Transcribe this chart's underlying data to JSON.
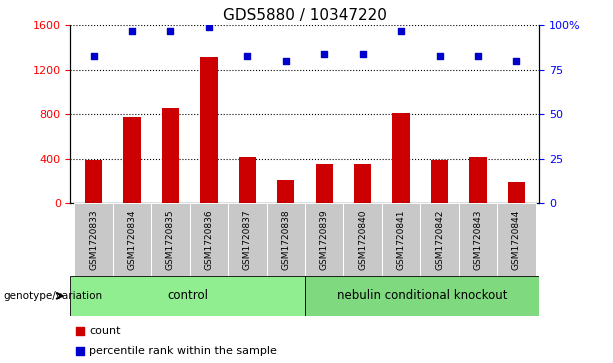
{
  "title": "GDS5880 / 10347220",
  "samples": [
    "GSM1720833",
    "GSM1720834",
    "GSM1720835",
    "GSM1720836",
    "GSM1720837",
    "GSM1720838",
    "GSM1720839",
    "GSM1720840",
    "GSM1720841",
    "GSM1720842",
    "GSM1720843",
    "GSM1720844"
  ],
  "counts": [
    390,
    780,
    860,
    1320,
    415,
    210,
    355,
    350,
    810,
    390,
    415,
    195
  ],
  "percentiles": [
    83,
    97,
    97,
    99,
    83,
    80,
    84,
    84,
    97,
    83,
    83,
    80
  ],
  "ylim_left": [
    0,
    1600
  ],
  "ylim_right": [
    0,
    100
  ],
  "yticks_left": [
    0,
    400,
    800,
    1200,
    1600
  ],
  "yticks_right": [
    0,
    25,
    50,
    75,
    100
  ],
  "yticklabels_right": [
    "0",
    "25",
    "50",
    "75",
    "100%"
  ],
  "groups": [
    {
      "label": "control",
      "start": 0,
      "end": 6,
      "color": "#90EE90"
    },
    {
      "label": "nebulin conditional knockout",
      "start": 6,
      "end": 12,
      "color": "#7FD97F"
    }
  ],
  "group_label": "genotype/variation",
  "bar_color": "#CC0000",
  "dot_color": "#0000CC",
  "bar_width": 0.45,
  "grid_color": "black",
  "background_color": "#ffffff",
  "tick_area_color": "#C8C8C8",
  "legend_count_label": "count",
  "legend_percentile_label": "percentile rank within the sample",
  "title_fontsize": 11,
  "tick_fontsize": 8,
  "sample_fontsize": 6.5,
  "group_fontsize": 8.5,
  "legend_fontsize": 8
}
